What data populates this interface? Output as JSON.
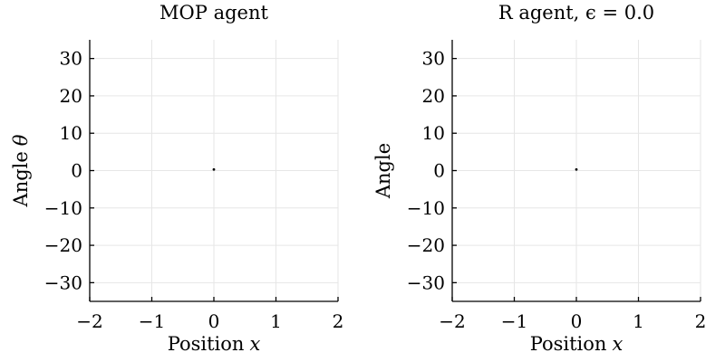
{
  "chart_data": [
    {
      "type": "scatter",
      "title": "MOP agent",
      "xlabel": "Position",
      "xlabel_var": "x",
      "ylabel": "Angle",
      "ylabel_var": "θ",
      "xlim": [
        -2,
        2
      ],
      "ylim": [
        -35,
        35
      ],
      "xticks": [
        -2,
        -1,
        0,
        1,
        2
      ],
      "xtick_labels": [
        "−2",
        "−1",
        "0",
        "1",
        "2"
      ],
      "yticks": [
        30,
        20,
        10,
        0,
        -10,
        -20,
        -30
      ],
      "ytick_labels": [
        "30",
        "20",
        "10",
        "0",
        "−10",
        "−20",
        "−30"
      ],
      "grid": true,
      "points": [
        {
          "x": 0,
          "y": 0.3
        }
      ]
    },
    {
      "type": "scatter",
      "title": "R agent, ϵ = 0.0",
      "xlabel": "Position",
      "xlabel_var": "x",
      "ylabel": "Angle",
      "ylabel_var": "",
      "xlim": [
        -2,
        2
      ],
      "ylim": [
        -35,
        35
      ],
      "xticks": [
        -2,
        -1,
        0,
        1,
        2
      ],
      "xtick_labels": [
        "−2",
        "−1",
        "0",
        "1",
        "2"
      ],
      "yticks": [
        30,
        20,
        10,
        0,
        -10,
        -20,
        -30
      ],
      "ytick_labels": [
        "30",
        "20",
        "10",
        "0",
        "−10",
        "−20",
        "−30"
      ],
      "grid": true,
      "points": [
        {
          "x": 0,
          "y": 0.3
        }
      ]
    }
  ]
}
